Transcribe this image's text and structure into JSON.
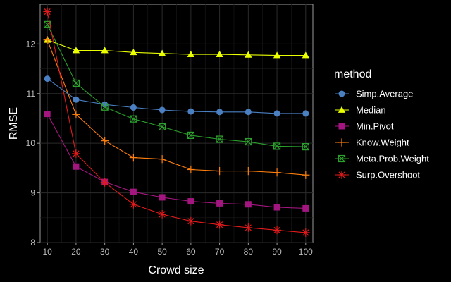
{
  "chart_data": {
    "type": "line",
    "xlabel": "Crowd size",
    "ylabel": "RMSE",
    "x": [
      10,
      20,
      30,
      40,
      50,
      60,
      70,
      80,
      90,
      100
    ],
    "x_ticks": [
      "10",
      "20",
      "30",
      "40",
      "50",
      "60",
      "70",
      "80",
      "90",
      "100"
    ],
    "y_ticks": [
      "8",
      "9",
      "10",
      "11",
      "12"
    ],
    "xlim": [
      7.5,
      102.5
    ],
    "ylim": [
      8.0,
      12.8
    ],
    "grid": true,
    "legend_title": "method",
    "legend_position": "right",
    "series": [
      {
        "name": "Simp.Average",
        "color": "#4a7fc1",
        "marker": "circle",
        "values": [
          11.3,
          10.88,
          10.78,
          10.72,
          10.67,
          10.64,
          10.63,
          10.63,
          10.6,
          10.6
        ]
      },
      {
        "name": "Median",
        "color": "#eaff00",
        "marker": "triangle",
        "values": [
          12.08,
          11.87,
          11.87,
          11.83,
          11.81,
          11.79,
          11.79,
          11.78,
          11.77,
          11.77
        ]
      },
      {
        "name": "Min.Pivot",
        "color": "#a3167f",
        "marker": "square",
        "values": [
          10.59,
          9.53,
          9.22,
          9.02,
          8.91,
          8.83,
          8.79,
          8.77,
          8.71,
          8.69
        ]
      },
      {
        "name": "Know.Weight",
        "color": "#ff7f0e",
        "marker": "plus",
        "values": [
          12.08,
          10.58,
          10.05,
          9.71,
          9.68,
          9.47,
          9.44,
          9.44,
          9.41,
          9.36
        ]
      },
      {
        "name": "Meta.Prob.Weight",
        "color": "#2ca02c",
        "marker": "boxx",
        "values": [
          12.39,
          11.21,
          10.73,
          10.49,
          10.33,
          10.16,
          10.08,
          10.03,
          9.94,
          9.93
        ]
      },
      {
        "name": "Surp.Overshoot",
        "color": "#e31a1c",
        "marker": "asterisk",
        "values": [
          12.65,
          9.79,
          9.21,
          8.77,
          8.57,
          8.43,
          8.36,
          8.3,
          8.25,
          8.2
        ]
      }
    ]
  }
}
